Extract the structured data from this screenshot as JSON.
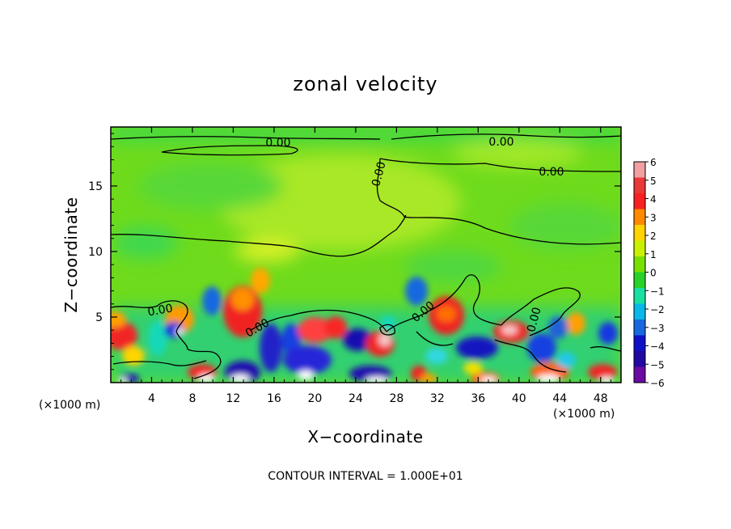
{
  "chart_data": {
    "type": "heatmap",
    "title": "zonal velocity",
    "xlabel": "X−coordinate",
    "ylabel": "Z−coordinate",
    "x_unit_left": "(×1000 m)",
    "x_unit_right": "(×1000 m)",
    "x_ticks": [
      "4",
      "8",
      "12",
      "16",
      "20",
      "24",
      "28",
      "32",
      "36",
      "40",
      "44",
      "48"
    ],
    "y_ticks": [
      "5",
      "10",
      "15"
    ],
    "xlim": [
      0,
      50
    ],
    "ylim": [
      0,
      19.5
    ],
    "footer": "CONTOUR INTERVAL = 1.000E+01",
    "contour_labels": [
      "0.00",
      "0.00",
      "0.00",
      "0.00",
      "0.00",
      "0.00",
      "0.00",
      "0.00"
    ],
    "colorbar": {
      "ticks": [
        "6",
        "5",
        "4",
        "3",
        "2",
        "1",
        "0",
        "−1",
        "−2",
        "−3",
        "−4",
        "−5",
        "−6"
      ],
      "colors": [
        "#f0a0a0",
        "#e83838",
        "#f82020",
        "#ff8a00",
        "#ffd400",
        "#c8f000",
        "#78e000",
        "#28d228",
        "#18e0a0",
        "#08b8e8",
        "#1868e0",
        "#1010c8",
        "#2008a0",
        "#6a0aa0"
      ]
    }
  }
}
